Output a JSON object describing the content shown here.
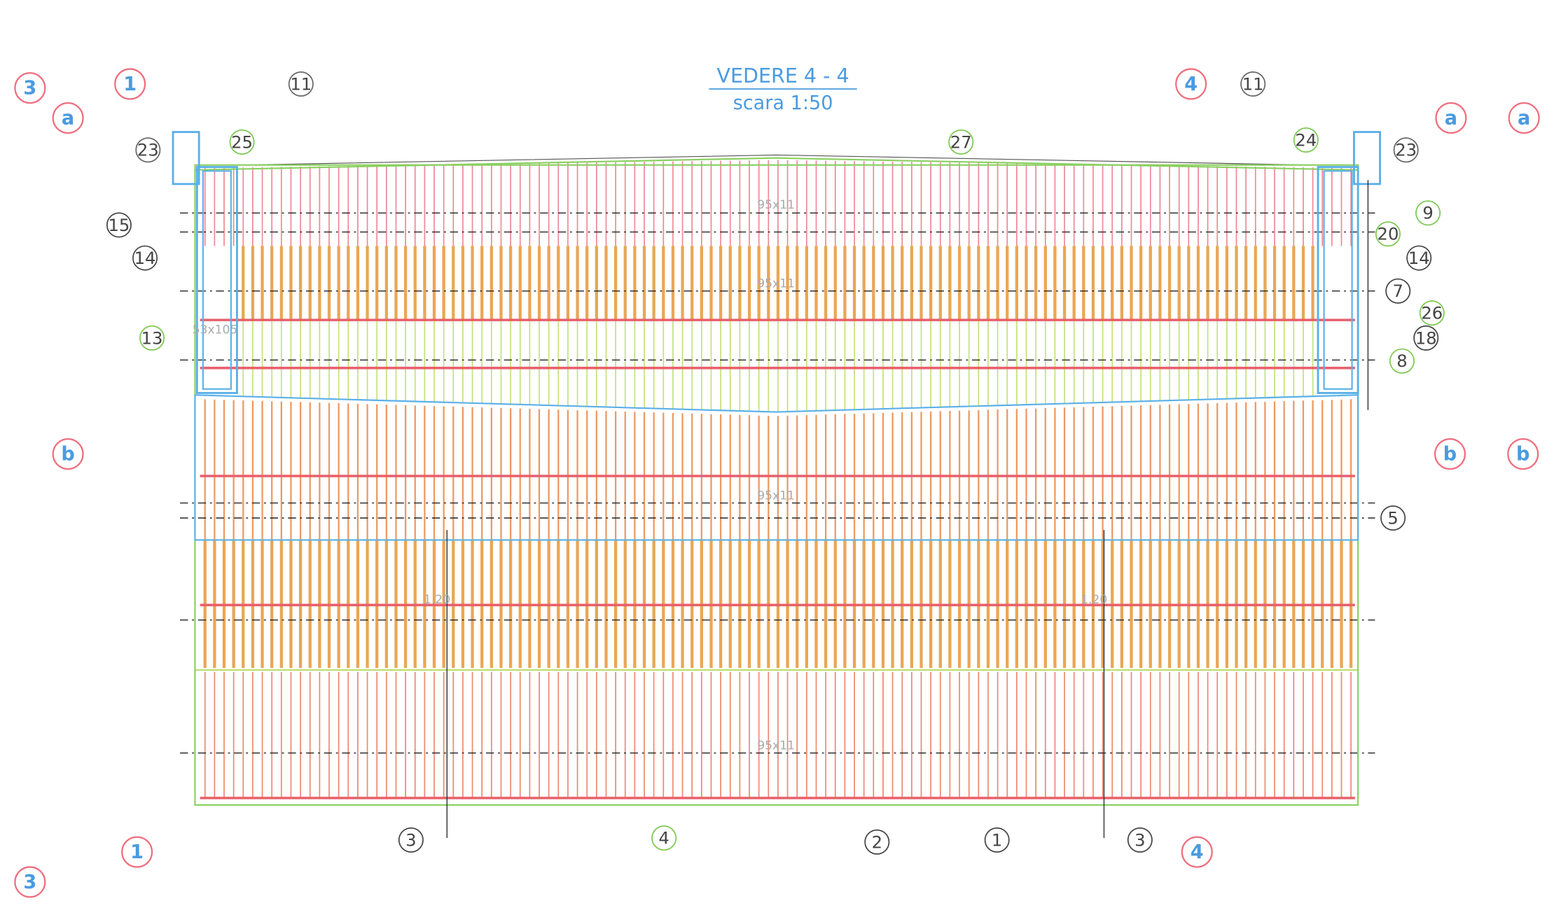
{
  "title": "VEDERE  4 - 4",
  "scale": "scara 1:50",
  "callouts": [
    {
      "label": "11"
    },
    {
      "label": "11"
    },
    {
      "label": "25"
    },
    {
      "label": "23"
    },
    {
      "label": "27"
    },
    {
      "label": "24"
    },
    {
      "label": "23"
    },
    {
      "label": "15"
    },
    {
      "label": "14"
    },
    {
      "label": "13"
    },
    {
      "label": "9"
    },
    {
      "label": "20"
    },
    {
      "label": "14"
    },
    {
      "label": "7"
    },
    {
      "label": "26"
    },
    {
      "label": "18"
    },
    {
      "label": "8"
    },
    {
      "label": "5"
    },
    {
      "label": "3"
    },
    {
      "label": "4"
    },
    {
      "label": "2"
    },
    {
      "label": "1"
    },
    {
      "label": "3"
    }
  ],
  "section_markers": [
    {
      "label": "3"
    },
    {
      "label": "1"
    },
    {
      "label": "a"
    },
    {
      "label": "b"
    },
    {
      "label": "4"
    },
    {
      "label": "a"
    },
    {
      "label": "a"
    },
    {
      "label": "b"
    },
    {
      "label": "b"
    },
    {
      "label": "1"
    },
    {
      "label": "4"
    },
    {
      "label": "3"
    }
  ],
  "dimension_labels": [
    "95x11",
    "95x11",
    "95x11",
    "95x11",
    "53x105",
    "1.20",
    "1.20"
  ]
}
